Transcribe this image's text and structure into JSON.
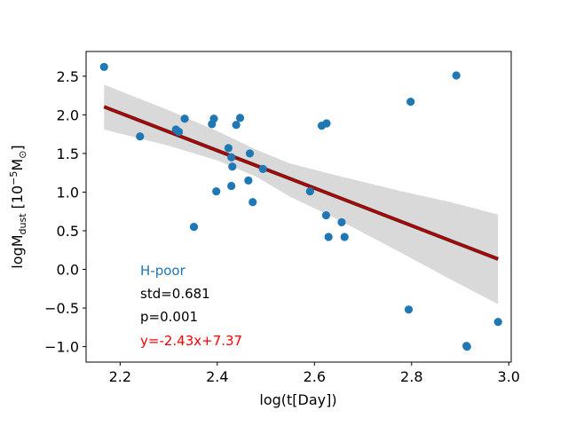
{
  "chart_data": {
    "type": "scatter",
    "xlabel": "log(t[Day])",
    "ylabel": {
      "prefix": "logM",
      "sub": "dust",
      "unit_open": " [10",
      "sup": "−5",
      "unit_m": "M",
      "sun_sub": "⊙",
      "unit_close": "]"
    },
    "xlim": [
      2.13,
      3.005
    ],
    "ylim": [
      -1.2,
      2.82
    ],
    "xticks": [
      {
        "value": 2.2,
        "label": "2.2"
      },
      {
        "value": 2.4,
        "label": "2.4"
      },
      {
        "value": 2.6,
        "label": "2.6"
      },
      {
        "value": 2.8,
        "label": "2.8"
      },
      {
        "value": 3.0,
        "label": "3.0"
      }
    ],
    "yticks": [
      {
        "value": -1.0,
        "label": "−1.0"
      },
      {
        "value": -0.5,
        "label": "−0.5"
      },
      {
        "value": 0.0,
        "label": "0.0"
      },
      {
        "value": 0.5,
        "label": "0.5"
      },
      {
        "value": 1.0,
        "label": "1.0"
      },
      {
        "value": 1.5,
        "label": "1.5"
      },
      {
        "value": 2.0,
        "label": "2.0"
      },
      {
        "value": 2.5,
        "label": "2.5"
      }
    ],
    "series": [
      {
        "name": "H-poor",
        "color": "#1f77b4",
        "points": [
          [
            2.167,
            2.62
          ],
          [
            2.241,
            1.72
          ],
          [
            2.315,
            1.81
          ],
          [
            2.321,
            1.78
          ],
          [
            2.333,
            1.95
          ],
          [
            2.352,
            0.55
          ],
          [
            2.389,
            1.88
          ],
          [
            2.393,
            1.95
          ],
          [
            2.398,
            1.01
          ],
          [
            2.423,
            1.57
          ],
          [
            2.429,
            1.45
          ],
          [
            2.431,
            1.33
          ],
          [
            2.429,
            1.08
          ],
          [
            2.439,
            1.87
          ],
          [
            2.447,
            1.96
          ],
          [
            2.464,
            1.15
          ],
          [
            2.467,
            1.5
          ],
          [
            2.473,
            0.87
          ],
          [
            2.494,
            1.3
          ],
          [
            2.591,
            1.01
          ],
          [
            2.615,
            1.86
          ],
          [
            2.625,
            1.89
          ],
          [
            2.624,
            0.7
          ],
          [
            2.629,
            0.42
          ],
          [
            2.656,
            0.61
          ],
          [
            2.662,
            0.42
          ],
          [
            2.794,
            -0.52
          ],
          [
            2.798,
            2.17
          ],
          [
            2.892,
            2.51
          ],
          [
            2.913,
            -0.99
          ],
          [
            2.914,
            -1.0
          ],
          [
            2.978,
            -0.68
          ]
        ]
      }
    ],
    "fit": {
      "slope": -2.43,
      "intercept": 7.37,
      "x_range": [
        2.167,
        2.978
      ],
      "color": "#c00000",
      "ci_upper": [
        [
          2.167,
          2.39
        ],
        [
          2.3,
          2.06
        ],
        [
          2.4,
          1.79
        ],
        [
          2.48,
          1.55
        ],
        [
          2.55,
          1.37
        ],
        [
          2.65,
          1.21
        ],
        [
          2.78,
          1.01
        ],
        [
          2.88,
          0.87
        ],
        [
          2.978,
          0.71
        ]
      ],
      "ci_lower": [
        [
          2.167,
          1.81
        ],
        [
          2.3,
          1.6
        ],
        [
          2.4,
          1.41
        ],
        [
          2.48,
          1.2
        ],
        [
          2.55,
          0.94
        ],
        [
          2.65,
          0.64
        ],
        [
          2.78,
          0.21
        ],
        [
          2.88,
          -0.13
        ],
        [
          2.978,
          -0.45
        ]
      ]
    },
    "annotations": {
      "label": {
        "text": "H-poor",
        "color": "#1f77b4"
      },
      "std": {
        "text": "std=0.681",
        "color": "#000000"
      },
      "p": {
        "text": "p=0.001",
        "color": "#000000"
      },
      "equation": {
        "text": "y=-2.43x+7.37",
        "color": "#ff0000"
      }
    }
  }
}
